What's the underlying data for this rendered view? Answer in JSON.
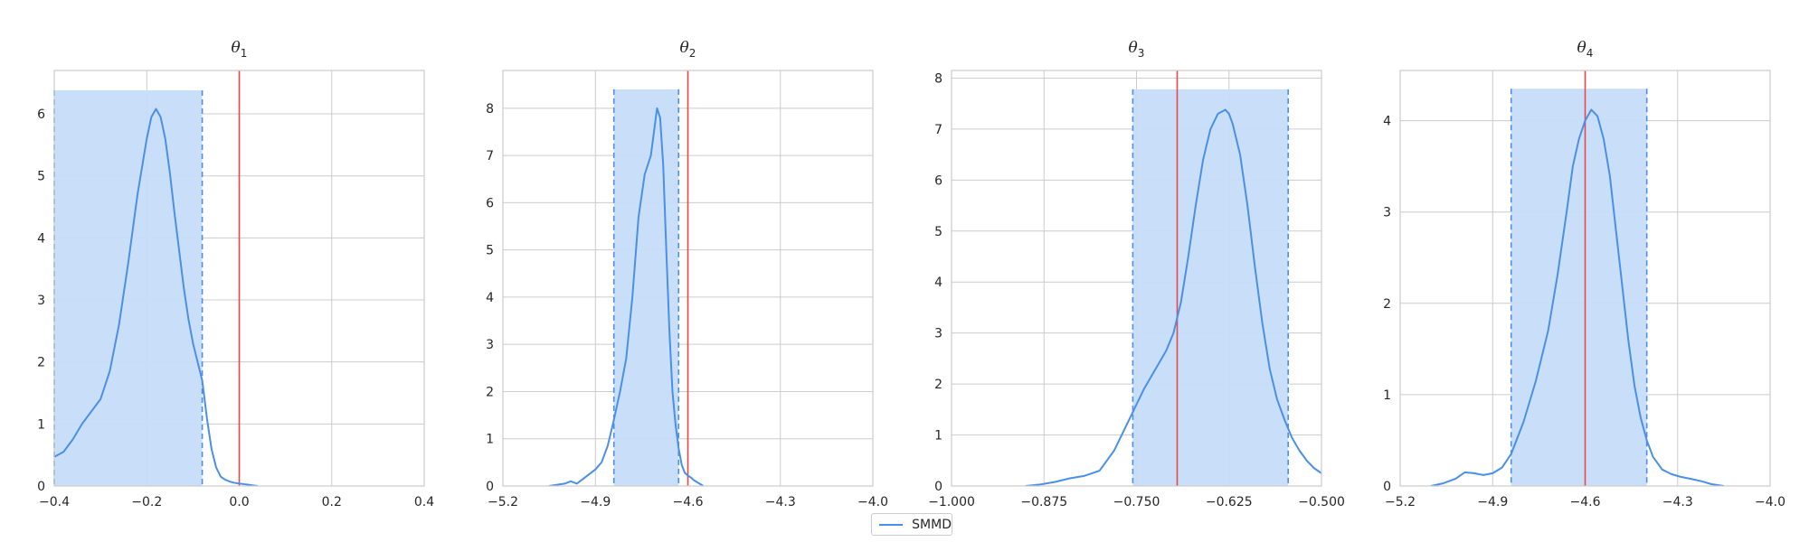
{
  "chart_data": [
    {
      "type": "area",
      "title": "θ₁",
      "title_main": "θ",
      "title_sub": "1",
      "xlim": [
        -0.4,
        0.4
      ],
      "ylim": [
        0,
        6.7
      ],
      "xticks": [
        -0.4,
        -0.2,
        0.0,
        0.2,
        0.4
      ],
      "xtick_labels": [
        "−0.4",
        "−0.2",
        "0.0",
        "0.2",
        "0.4"
      ],
      "yticks": [
        0,
        1,
        2,
        3,
        4,
        5,
        6
      ],
      "ytick_labels": [
        "0",
        "1",
        "2",
        "3",
        "4",
        "5",
        "6"
      ],
      "interval": [
        -0.4,
        -0.08
      ],
      "interval_height": 6.38,
      "true_value": 0.0,
      "density": {
        "name": "SMMD",
        "x": [
          -0.4,
          -0.38,
          -0.36,
          -0.34,
          -0.32,
          -0.3,
          -0.28,
          -0.26,
          -0.24,
          -0.22,
          -0.2,
          -0.19,
          -0.18,
          -0.17,
          -0.16,
          -0.15,
          -0.14,
          -0.13,
          -0.12,
          -0.11,
          -0.1,
          -0.09,
          -0.08,
          -0.07,
          -0.06,
          -0.05,
          -0.04,
          -0.03,
          -0.02,
          -0.01,
          0.0,
          0.01,
          0.02,
          0.03,
          0.04
        ],
        "y": [
          0.47,
          0.55,
          0.75,
          1.0,
          1.2,
          1.4,
          1.85,
          2.6,
          3.6,
          4.7,
          5.6,
          5.95,
          6.08,
          5.95,
          5.6,
          5.05,
          4.4,
          3.8,
          3.2,
          2.7,
          2.3,
          2.0,
          1.7,
          1.1,
          0.6,
          0.3,
          0.15,
          0.1,
          0.07,
          0.05,
          0.04,
          0.03,
          0.02,
          0.01,
          0.0
        ]
      },
      "grid": true
    },
    {
      "type": "area",
      "title": "θ₂",
      "title_main": "θ",
      "title_sub": "2",
      "xlim": [
        -5.2,
        -4.0
      ],
      "ylim": [
        0,
        8.8
      ],
      "xticks": [
        -5.2,
        -4.9,
        -4.6,
        -4.3,
        -4.0
      ],
      "xtick_labels": [
        "−5.2",
        "−4.9",
        "−4.6",
        "−4.3",
        "−4.0"
      ],
      "yticks": [
        0,
        1,
        2,
        3,
        4,
        5,
        6,
        7,
        8
      ],
      "ytick_labels": [
        "0",
        "1",
        "2",
        "3",
        "4",
        "5",
        "6",
        "7",
        "8"
      ],
      "interval": [
        -4.84,
        -4.63
      ],
      "interval_height": 8.4,
      "true_value": -4.6,
      "density": {
        "name": "SMMD",
        "x": [
          -5.05,
          -5.0,
          -4.98,
          -4.96,
          -4.94,
          -4.92,
          -4.9,
          -4.88,
          -4.86,
          -4.84,
          -4.82,
          -4.8,
          -4.78,
          -4.76,
          -4.74,
          -4.72,
          -4.71,
          -4.7,
          -4.69,
          -4.68,
          -4.67,
          -4.66,
          -4.65,
          -4.64,
          -4.63,
          -4.62,
          -4.61,
          -4.6,
          -4.59,
          -4.58,
          -4.56,
          -4.55
        ],
        "y": [
          0.0,
          0.05,
          0.1,
          0.05,
          0.15,
          0.25,
          0.35,
          0.5,
          0.85,
          1.4,
          2.0,
          2.7,
          4.0,
          5.7,
          6.6,
          7.0,
          7.5,
          8.0,
          7.8,
          6.8,
          5.0,
          3.3,
          2.0,
          1.3,
          0.8,
          0.45,
          0.28,
          0.22,
          0.18,
          0.12,
          0.04,
          0.0
        ]
      },
      "grid": true
    },
    {
      "type": "area",
      "title": "θ₃",
      "title_main": "θ",
      "title_sub": "3",
      "xlim": [
        -1.0,
        -0.5
      ],
      "ylim": [
        0,
        8.15
      ],
      "xticks": [
        -1.0,
        -0.875,
        -0.75,
        -0.625,
        -0.5
      ],
      "xtick_labels": [
        "−1.000",
        "−0.875",
        "−0.750",
        "−0.625",
        "−0.500"
      ],
      "yticks": [
        0,
        1,
        2,
        3,
        4,
        5,
        6,
        7,
        8
      ],
      "ytick_labels": [
        "0",
        "1",
        "2",
        "3",
        "4",
        "5",
        "6",
        "7",
        "8"
      ],
      "interval": [
        -0.755,
        -0.545
      ],
      "interval_height": 7.78,
      "true_value": -0.695,
      "density": {
        "name": "SMMD",
        "x": [
          -0.9,
          -0.88,
          -0.86,
          -0.84,
          -0.82,
          -0.8,
          -0.78,
          -0.77,
          -0.76,
          -0.75,
          -0.74,
          -0.73,
          -0.72,
          -0.71,
          -0.7,
          -0.69,
          -0.68,
          -0.67,
          -0.66,
          -0.65,
          -0.64,
          -0.63,
          -0.625,
          -0.62,
          -0.61,
          -0.6,
          -0.59,
          -0.58,
          -0.57,
          -0.56,
          -0.55,
          -0.54,
          -0.53,
          -0.52,
          -0.51,
          -0.5
        ],
        "y": [
          0.0,
          0.03,
          0.08,
          0.15,
          0.2,
          0.3,
          0.7,
          1.0,
          1.3,
          1.6,
          1.9,
          2.15,
          2.4,
          2.65,
          3.0,
          3.6,
          4.5,
          5.5,
          6.4,
          7.0,
          7.3,
          7.38,
          7.3,
          7.1,
          6.5,
          5.5,
          4.3,
          3.2,
          2.3,
          1.7,
          1.3,
          0.95,
          0.7,
          0.5,
          0.35,
          0.25
        ]
      },
      "grid": true
    },
    {
      "type": "area",
      "title": "θ₄",
      "title_main": "θ",
      "title_sub": "4",
      "xlim": [
        -5.2,
        -4.0
      ],
      "ylim": [
        0,
        4.55
      ],
      "xticks": [
        -5.2,
        -4.9,
        -4.6,
        -4.3,
        -4.0
      ],
      "xtick_labels": [
        "−5.2",
        "−4.9",
        "−4.6",
        "−4.3",
        "−4.0"
      ],
      "yticks": [
        0,
        1,
        2,
        3,
        4
      ],
      "ytick_labels": [
        "0",
        "1",
        "2",
        "3",
        "4"
      ],
      "interval": [
        -4.84,
        -4.4
      ],
      "interval_height": 4.35,
      "true_value": -4.6,
      "density": {
        "name": "SMMD",
        "x": [
          -5.1,
          -5.06,
          -5.02,
          -4.99,
          -4.96,
          -4.93,
          -4.9,
          -4.87,
          -4.84,
          -4.8,
          -4.76,
          -4.72,
          -4.69,
          -4.66,
          -4.64,
          -4.62,
          -4.6,
          -4.58,
          -4.56,
          -4.54,
          -4.52,
          -4.5,
          -4.48,
          -4.46,
          -4.44,
          -4.42,
          -4.4,
          -4.38,
          -4.35,
          -4.32,
          -4.29,
          -4.26,
          -4.22,
          -4.19,
          -4.15
        ],
        "y": [
          0.0,
          0.03,
          0.08,
          0.15,
          0.14,
          0.12,
          0.14,
          0.2,
          0.35,
          0.7,
          1.15,
          1.7,
          2.3,
          3.0,
          3.5,
          3.8,
          4.0,
          4.12,
          4.05,
          3.8,
          3.4,
          2.8,
          2.2,
          1.6,
          1.1,
          0.75,
          0.5,
          0.32,
          0.18,
          0.13,
          0.1,
          0.08,
          0.05,
          0.02,
          0.0
        ]
      },
      "grid": true
    }
  ],
  "legend": {
    "label": "SMMD",
    "color": "#4a8fe8"
  },
  "colors": {
    "density": "#4a8fe8",
    "interval_fill": "#c6dcf9",
    "interval_line": "#4a8fe8",
    "true_line": "#e8474c",
    "grid": "#cccccc",
    "axis": "#cccccc"
  }
}
